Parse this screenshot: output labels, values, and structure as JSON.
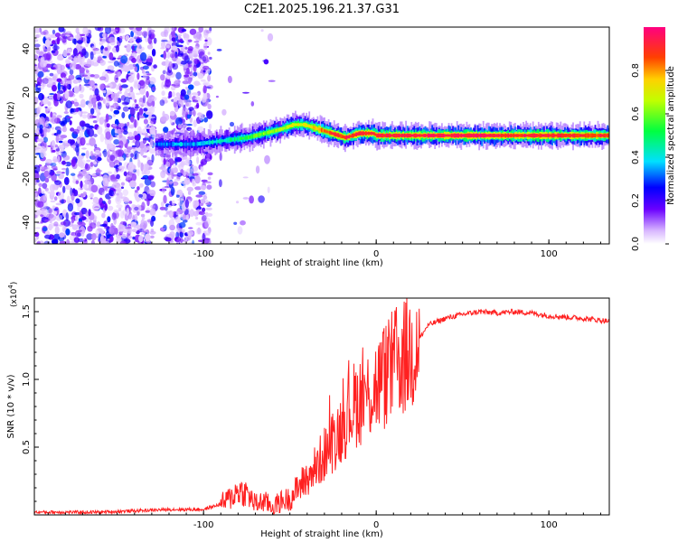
{
  "title": "C2E1.2025.196.21.37.G31",
  "chart_data": [
    {
      "type": "heatmap",
      "xlabel": "Height of straight line (km)",
      "ylabel": "Frequency (Hz)",
      "xlim": [
        -198,
        135
      ],
      "ylim": [
        -50,
        50
      ],
      "x_ticks": [
        -100,
        0,
        100
      ],
      "x_tick_labels": [
        "-100",
        "0",
        "100"
      ],
      "y_ticks": [
        -40,
        -20,
        0,
        20,
        40
      ],
      "y_tick_labels": [
        "-40",
        "-20",
        "0",
        "20",
        "40"
      ],
      "colorbar": {
        "label": "Normalized spectral amplitude",
        "range": [
          0,
          1
        ],
        "ticks": [
          0.0,
          0.2,
          0.4,
          0.6,
          0.8
        ],
        "tick_labels": [
          "0.0",
          "0.2",
          "0.4",
          "0.6",
          "0.8"
        ]
      },
      "ridge": {
        "x": [
          -128,
          -115,
          -105,
          -95,
          -85,
          -75,
          -65,
          -55,
          -48,
          -42,
          -38,
          -34,
          -30,
          -26,
          -22,
          -18,
          -14,
          -10,
          -6,
          -2,
          0,
          10,
          30,
          60,
          90,
          120,
          135
        ],
        "freq": [
          -4,
          -4,
          -4,
          -3,
          -2,
          -1,
          1,
          3,
          5,
          5,
          4,
          3,
          2,
          1,
          0,
          -1,
          0,
          1,
          1,
          1,
          0,
          0,
          0,
          0,
          0,
          0,
          0
        ],
        "amplitude": [
          0.3,
          0.35,
          0.35,
          0.4,
          0.45,
          0.55,
          0.6,
          0.65,
          0.7,
          0.7,
          0.75,
          0.8,
          0.85,
          0.9,
          0.9,
          0.9,
          0.9,
          0.9,
          0.9,
          0.9,
          0.9,
          0.92,
          0.94,
          0.94,
          0.92,
          0.9,
          0.88
        ]
      },
      "grid": false,
      "legend": "none"
    },
    {
      "type": "line",
      "xlabel": "Height of straight line (km)",
      "ylabel": "SNR (10 * v/v)",
      "y_multiplier_label": "(x10",
      "y_multiplier_exp": "4",
      "xlim": [
        -198,
        135
      ],
      "ylim": [
        0,
        1.6
      ],
      "x_ticks": [
        -100,
        0,
        100
      ],
      "x_tick_labels": [
        "-100",
        "0",
        "100"
      ],
      "y_ticks": [
        0.5,
        1.0,
        1.5
      ],
      "y_tick_labels": [
        "0.5",
        "1.0",
        "1.5"
      ],
      "series": [
        {
          "color": "#ff2020",
          "x": [
            -198,
            -180,
            -160,
            -140,
            -120,
            -100,
            -90,
            -85,
            -80,
            -75,
            -70,
            -65,
            -60,
            -55,
            -50,
            -45,
            -40,
            -35,
            -30,
            -25,
            -20,
            -15,
            -10,
            -5,
            0,
            5,
            10,
            15,
            20,
            25,
            30,
            40,
            50,
            60,
            70,
            80,
            90,
            100,
            110,
            120,
            135
          ],
          "y": [
            0.02,
            0.02,
            0.02,
            0.03,
            0.04,
            0.04,
            0.08,
            0.12,
            0.18,
            0.16,
            0.08,
            0.1,
            0.06,
            0.1,
            0.12,
            0.2,
            0.28,
            0.35,
            0.45,
            0.55,
            0.65,
            0.78,
            0.85,
            0.88,
            0.95,
            1.02,
            1.1,
            1.15,
            1.2,
            1.3,
            1.4,
            1.45,
            1.48,
            1.5,
            1.49,
            1.5,
            1.49,
            1.47,
            1.46,
            1.45,
            1.43
          ]
        }
      ],
      "grid": false,
      "legend": "none"
    }
  ]
}
